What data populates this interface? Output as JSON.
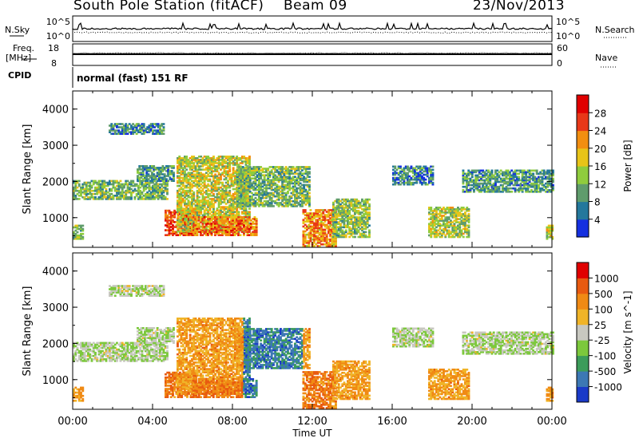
{
  "header": {
    "station": "South Pole Station (fitACF)",
    "beam": "Beam 09",
    "date": "23/Nov/2013"
  },
  "top_panels": {
    "nsky_label": "N.Sky",
    "nsearch_label": "N.Search",
    "noise_ticks": [
      "10^5",
      "10^0"
    ],
    "freq_label_1": "Freq.",
    "freq_label_2": "[MHz]",
    "freq_ticks": [
      "18",
      "8"
    ],
    "nave_label": "Nave",
    "nave_ticks": [
      "60",
      "0"
    ],
    "cpid_label": "CPID",
    "cpid_text": "normal (fast) 151 RF"
  },
  "chart_data": [
    {
      "type": "heatmap",
      "title": "Power",
      "ylabel": "Slant Range [km]",
      "ylim": [
        180,
        4500
      ],
      "yticks": [
        "1000",
        "2000",
        "3000",
        "4000"
      ],
      "colorbar": {
        "label": "Power [dB]",
        "ticks": [
          "4",
          "8",
          "12",
          "16",
          "20",
          "24",
          "28"
        ],
        "colors": [
          "#1530e0",
          "#24789c",
          "#5f9c6c",
          "#8fcc3d",
          "#e8c418",
          "#f28e10",
          "#e83818",
          "#e00000"
        ]
      }
    },
    {
      "type": "heatmap",
      "title": "Velocity",
      "ylabel": "Slant Range [km]",
      "ylim": [
        180,
        4500
      ],
      "yticks": [
        "1000",
        "2000",
        "3000",
        "4000"
      ],
      "xlabel": "Time UT",
      "xticks": [
        "00:00",
        "04:00",
        "08:00",
        "12:00",
        "16:00",
        "20:00",
        "00:00"
      ],
      "colorbar": {
        "label": "Velocity [m s^-1]",
        "ticks": [
          "1000",
          "500",
          "100",
          "25",
          "-25",
          "-100",
          "-500",
          "-1000"
        ],
        "colors": [
          "#1a3ac8",
          "#3c78b4",
          "#3c9c5a",
          "#7cc83c",
          "#c8c8c0",
          "#f0b428",
          "#f08a14",
          "#e85a10",
          "#e00000"
        ]
      }
    }
  ]
}
